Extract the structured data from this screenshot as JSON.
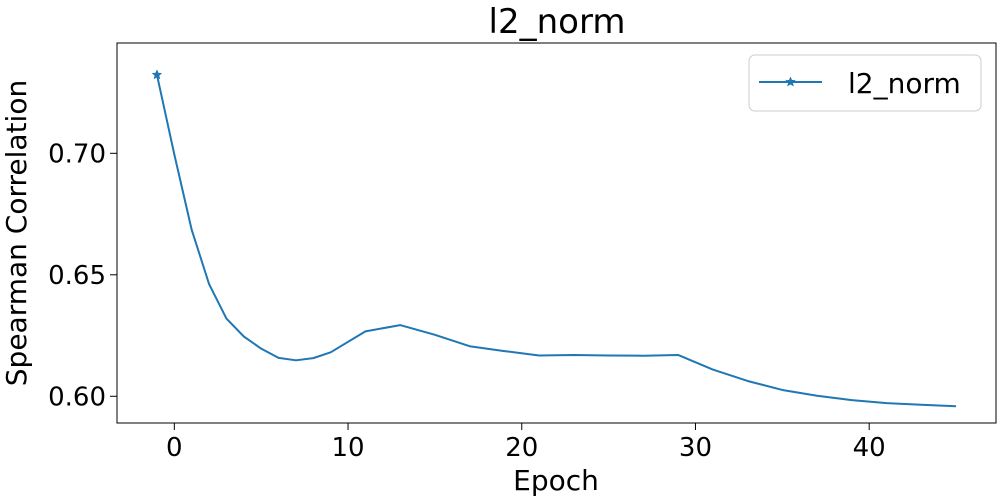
{
  "chart_data": {
    "type": "line",
    "title": "l2_norm",
    "xlabel": "Epoch",
    "ylabel": "Spearman Correlation",
    "xlim": [
      -3.3,
      47.3
    ],
    "ylim": [
      0.589,
      0.7454
    ],
    "xticks": [
      0,
      10,
      20,
      30,
      40
    ],
    "yticks": [
      0.6,
      0.65,
      0.7
    ],
    "xtick_labels": [
      "0",
      "10",
      "20",
      "30",
      "40"
    ],
    "ytick_labels": [
      "0.60",
      "0.65",
      "0.70"
    ],
    "grid": false,
    "legend": {
      "position": "top-right"
    },
    "series": [
      {
        "name": "l2_norm",
        "color": "#1f77b4",
        "marker": "star",
        "x": [
          -1,
          0,
          1,
          2,
          3,
          4,
          5,
          6,
          7,
          8,
          9,
          11,
          13,
          15,
          17,
          19,
          21,
          23,
          25,
          27,
          29,
          31,
          33,
          35,
          37,
          39,
          41,
          43,
          45
        ],
        "y": [
          0.7323,
          0.6995,
          0.6685,
          0.6462,
          0.632,
          0.6246,
          0.6196,
          0.6158,
          0.6148,
          0.6157,
          0.6181,
          0.6267,
          0.6293,
          0.6253,
          0.6206,
          0.6186,
          0.6168,
          0.617,
          0.6168,
          0.6167,
          0.617,
          0.611,
          0.6063,
          0.6026,
          0.6002,
          0.5984,
          0.5972,
          0.5965,
          0.5959
        ]
      }
    ]
  }
}
